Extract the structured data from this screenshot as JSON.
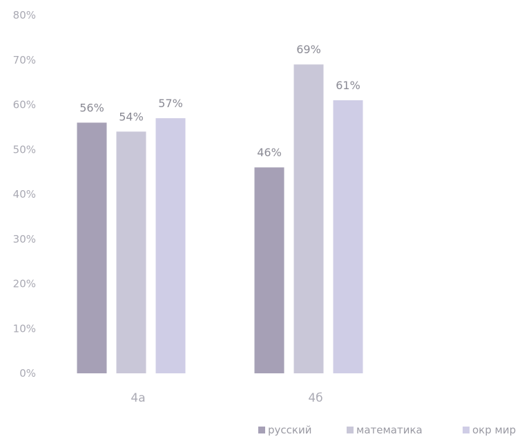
{
  "chart_data": {
    "type": "bar",
    "categories": [
      "4а",
      "4б"
    ],
    "series": [
      {
        "name": "русский",
        "values": [
          56,
          46
        ],
        "labels": [
          "56%",
          "46%"
        ],
        "color": "#a6a0b6"
      },
      {
        "name": "математика",
        "values": [
          54,
          69
        ],
        "labels": [
          "54%",
          "69%"
        ],
        "color": "#c9c7d8"
      },
      {
        "name": "окр мир",
        "values": [
          57,
          61
        ],
        "labels": [
          "57%",
          "61%"
        ],
        "color": "#cfcde6"
      }
    ],
    "ylim": [
      0,
      80
    ],
    "yticks": [
      0,
      10,
      20,
      30,
      40,
      50,
      60,
      70,
      80
    ],
    "ytick_labels": [
      "0%",
      "10%",
      "20%",
      "30%",
      "40%",
      "50%",
      "60%",
      "70%",
      "80%"
    ],
    "grid": false,
    "legend_position": "bottom-right",
    "title": "",
    "xlabel": "",
    "ylabel": ""
  }
}
